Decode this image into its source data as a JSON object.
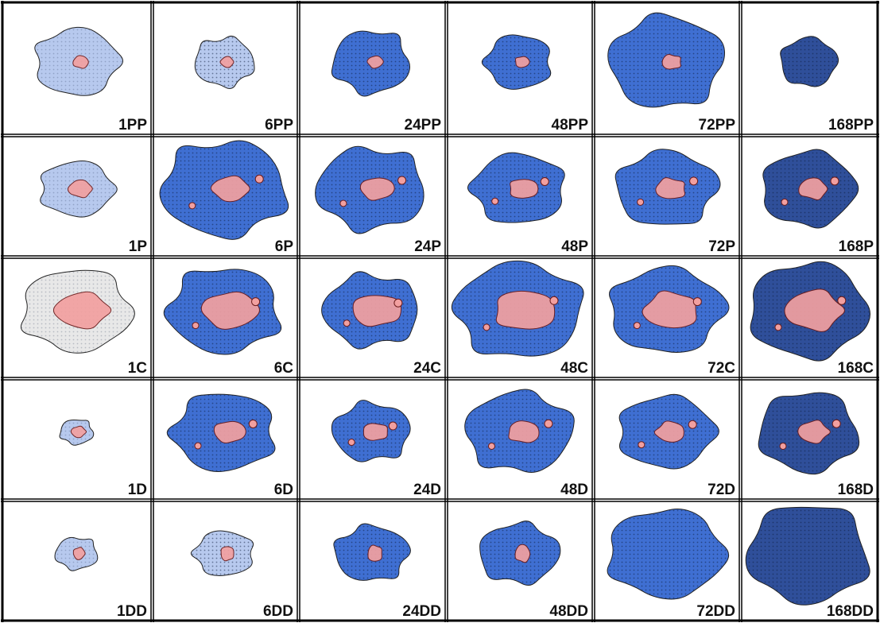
{
  "panels": {
    "rows": [
      [
        "1PP",
        "6PP",
        "24PP",
        "48PP",
        "72PP",
        "168PP"
      ],
      [
        "1P",
        "6P",
        "24P",
        "48P",
        "72P",
        "168P"
      ],
      [
        "1C",
        "6C",
        "24C",
        "48C",
        "72C",
        "168C"
      ],
      [
        "1D",
        "6D",
        "24D",
        "48D",
        "72D",
        "168D"
      ],
      [
        "1DD",
        "6DD",
        "24DD",
        "48DD",
        "72DD",
        "168DD"
      ]
    ]
  }
}
